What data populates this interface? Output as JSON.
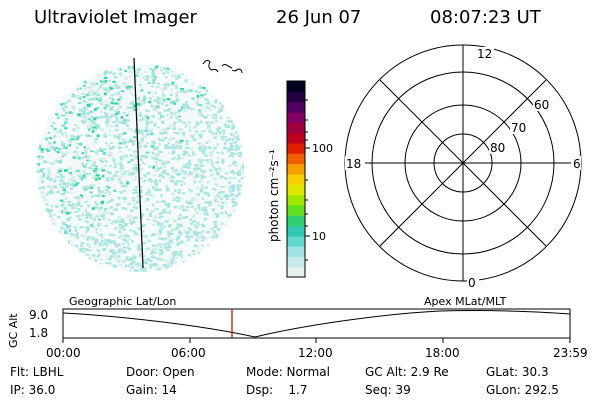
{
  "header": {
    "title": "Ultraviolet Imager",
    "date": "26 Jun 07",
    "time": "08:07:23 UT"
  },
  "colorbar": {
    "unit_label": "photon cm⁻²s⁻¹",
    "ticks": [
      {
        "label": "100",
        "value": 100
      },
      {
        "label": "10",
        "value": 10
      }
    ],
    "colors": [
      "#e6f2f2",
      "#c8eaea",
      "#a0e2e2",
      "#60d8d0",
      "#30c8b0",
      "#30d070",
      "#60e020",
      "#a0e800",
      "#e0e800",
      "#f8d000",
      "#f8a000",
      "#f06000",
      "#e02000",
      "#c00020",
      "#a00040",
      "#800060",
      "#500060",
      "#200040",
      "#000020"
    ]
  },
  "polar_plot": {
    "mlt_labels": {
      "top": "12",
      "left": "18",
      "right": "6",
      "bottom": "0"
    },
    "lat_labels": [
      "60",
      "70",
      "80"
    ]
  },
  "timeline": {
    "left_label": "Geographic Lat/Lon",
    "right_label": "Apex MLat/MLT",
    "axis_title": "GC Alt",
    "y_max_label": "9.0",
    "y_min_label": "1.8",
    "x_ticks": [
      "00:00",
      "06:00",
      "12:00",
      "18:00",
      "23:59"
    ],
    "marker_color": "#cc0000"
  },
  "info": {
    "flt": "Flt: LBHL",
    "door": "Door: Open",
    "mode": "Mode: Normal",
    "gc_alt": "GC Alt: 2.9 Re",
    "glat": "GLat: 30.3",
    "ip": "IP: 36.0",
    "gain": "Gain: 14",
    "dsp": "Dsp:    1.7",
    "seq": "Seq: 39",
    "glon": "GLon: 292.5"
  }
}
